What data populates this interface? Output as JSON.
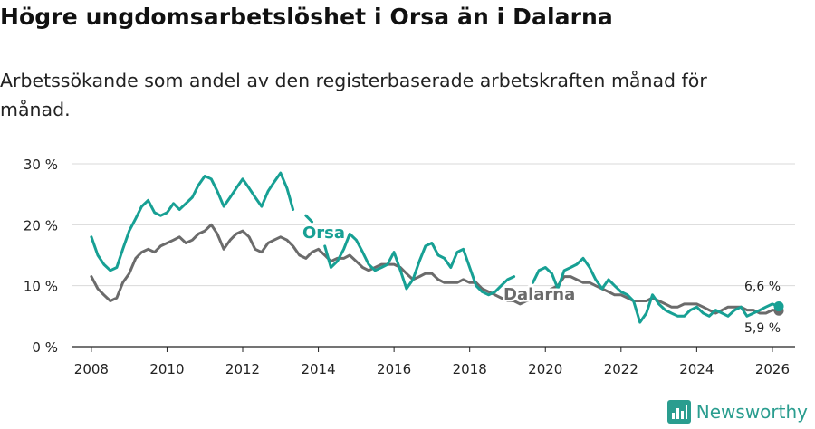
{
  "header": {
    "title": "Högre ungdomsarbetslöshet i Orsa än i Dalarna",
    "subtitle": "Arbetssökande som andel av den registerbaserade arbetskraften månad för månad."
  },
  "brand": {
    "name": "Newsworthy",
    "icon": "newsworthy-logo-icon",
    "color": "#2a9d8f"
  },
  "chart_data": {
    "type": "line",
    "title": "Högre ungdomsarbetslöshet i Orsa än i Dalarna",
    "xlabel": "",
    "ylabel": "",
    "xlim": [
      2007.5,
      2026.6
    ],
    "ylim": [
      0,
      30
    ],
    "grid": true,
    "x_ticks": [
      2008,
      2010,
      2012,
      2014,
      2016,
      2018,
      2020,
      2022,
      2024,
      2026
    ],
    "x_tick_labels": [
      "2008",
      "2010",
      "2012",
      "2014",
      "2016",
      "2018",
      "2020",
      "2022",
      "2024",
      "2026"
    ],
    "y_ticks": [
      0,
      10,
      20,
      30
    ],
    "y_tick_labels": [
      "0 %",
      "10 %",
      "20 %",
      "30 %"
    ],
    "series": [
      {
        "name": "Dalarna",
        "label": "Dalarna",
        "color": "#6b6b6b",
        "end_label": "5,9 %",
        "x": [
          2008.0,
          2008.17,
          2008.33,
          2008.5,
          2008.67,
          2008.83,
          2009.0,
          2009.17,
          2009.33,
          2009.5,
          2009.67,
          2009.83,
          2010.0,
          2010.17,
          2010.33,
          2010.5,
          2010.67,
          2010.83,
          2011.0,
          2011.17,
          2011.33,
          2011.5,
          2011.67,
          2011.83,
          2012.0,
          2012.17,
          2012.33,
          2012.5,
          2012.67,
          2012.83,
          2013.0,
          2013.17,
          2013.33,
          2013.5,
          2013.67,
          2013.83,
          2014.0,
          2014.17,
          2014.33,
          2014.5,
          2014.67,
          2014.83,
          2015.0,
          2015.17,
          2015.33,
          2015.5,
          2015.67,
          2015.83,
          2016.0,
          2016.17,
          2016.33,
          2016.5,
          2016.67,
          2016.83,
          2017.0,
          2017.17,
          2017.33,
          2017.5,
          2017.67,
          2017.83,
          2018.0,
          2018.17,
          2018.33,
          2018.5,
          2018.67,
          2018.83,
          2019.0,
          2019.17,
          2019.33,
          2019.5,
          2019.67,
          2019.83,
          2020.0,
          2020.17,
          2020.33,
          2020.5,
          2020.67,
          2020.83,
          2021.0,
          2021.17,
          2021.33,
          2021.5,
          2021.67,
          2021.83,
          2022.0,
          2022.17,
          2022.33,
          2022.5,
          2022.67,
          2022.83,
          2023.0,
          2023.17,
          2023.33,
          2023.5,
          2023.67,
          2023.83,
          2024.0,
          2024.17,
          2024.33,
          2024.5,
          2024.67,
          2024.83,
          2025.0,
          2025.17,
          2025.33,
          2025.5,
          2025.67,
          2025.83,
          2026.0,
          2026.17
        ],
        "values": [
          11.5,
          9.5,
          8.5,
          7.5,
          8.0,
          10.5,
          12.0,
          14.5,
          15.5,
          16.0,
          15.5,
          16.5,
          17.0,
          17.5,
          18.0,
          17.0,
          17.5,
          18.5,
          19.0,
          20.0,
          18.5,
          16.0,
          17.5,
          18.5,
          19.0,
          18.0,
          16.0,
          15.5,
          17.0,
          17.5,
          18.0,
          17.5,
          16.5,
          15.0,
          14.5,
          15.5,
          16.0,
          15.0,
          14.0,
          14.5,
          14.5,
          15.0,
          14.0,
          13.0,
          12.5,
          13.0,
          13.5,
          13.5,
          13.5,
          13.0,
          12.0,
          11.0,
          11.5,
          12.0,
          12.0,
          11.0,
          10.5,
          10.5,
          10.5,
          11.0,
          10.5,
          10.5,
          9.5,
          9.0,
          8.5,
          8.0,
          7.5,
          7.5,
          7.0,
          7.5,
          8.0,
          8.5,
          9.0,
          9.5,
          10.0,
          11.5,
          11.5,
          11.0,
          10.5,
          10.5,
          10.0,
          9.5,
          9.0,
          8.5,
          8.5,
          8.0,
          7.5,
          7.5,
          7.5,
          8.0,
          7.5,
          7.0,
          6.5,
          6.5,
          7.0,
          7.0,
          7.0,
          6.5,
          6.0,
          5.5,
          6.0,
          6.5,
          6.5,
          6.5,
          6.0,
          6.0,
          5.5,
          5.5,
          6.0,
          5.9
        ]
      },
      {
        "name": "Orsa",
        "label": "Orsa",
        "color": "#17a094",
        "end_label": "6,6 %",
        "x": [
          2008.0,
          2008.17,
          2008.33,
          2008.5,
          2008.67,
          2008.83,
          2009.0,
          2009.17,
          2009.33,
          2009.5,
          2009.67,
          2009.83,
          2010.0,
          2010.17,
          2010.33,
          2010.5,
          2010.67,
          2010.83,
          2011.0,
          2011.17,
          2011.33,
          2011.5,
          2011.67,
          2011.83,
          2012.0,
          2012.17,
          2012.33,
          2012.5,
          2012.67,
          2012.83,
          2013.0,
          2013.17,
          2013.33,
          2013.5,
          2013.67,
          2013.83,
          2014.0,
          2014.17,
          2014.33,
          2014.5,
          2014.67,
          2014.83,
          2015.0,
          2015.17,
          2015.33,
          2015.5,
          2015.67,
          2015.83,
          2016.0,
          2016.17,
          2016.33,
          2016.5,
          2016.67,
          2016.83,
          2017.0,
          2017.17,
          2017.33,
          2017.5,
          2017.67,
          2017.83,
          2018.0,
          2018.17,
          2018.33,
          2018.5,
          2018.67,
          2018.83,
          2019.0,
          2019.17,
          2019.33,
          2019.5,
          2019.67,
          2019.83,
          2020.0,
          2020.17,
          2020.33,
          2020.5,
          2020.67,
          2020.83,
          2021.0,
          2021.17,
          2021.33,
          2021.5,
          2021.67,
          2021.83,
          2022.0,
          2022.17,
          2022.33,
          2022.5,
          2022.67,
          2022.83,
          2023.0,
          2023.17,
          2023.33,
          2023.5,
          2023.67,
          2023.83,
          2024.0,
          2024.17,
          2024.33,
          2024.5,
          2024.67,
          2024.83,
          2025.0,
          2025.17,
          2025.33,
          2025.5,
          2025.67,
          2025.83,
          2026.0,
          2026.17
        ],
        "values": [
          18.0,
          15.0,
          13.5,
          12.5,
          13.0,
          16.0,
          19.0,
          21.0,
          23.0,
          24.0,
          22.0,
          21.5,
          22.0,
          23.5,
          22.5,
          23.5,
          24.5,
          26.5,
          28.0,
          27.5,
          25.5,
          23.0,
          24.5,
          26.0,
          27.5,
          26.0,
          24.5,
          23.0,
          25.5,
          27.0,
          28.5,
          26.0,
          22.5,
          null,
          21.5,
          20.5,
          null,
          16.5,
          13.0,
          14.0,
          16.0,
          18.5,
          17.5,
          15.5,
          13.5,
          12.5,
          13.0,
          13.5,
          15.5,
          12.5,
          9.5,
          11.0,
          14.0,
          16.5,
          17.0,
          15.0,
          14.5,
          13.0,
          15.5,
          16.0,
          13.0,
          10.0,
          9.0,
          8.5,
          9.0,
          10.0,
          11.0,
          11.5,
          null,
          null,
          10.5,
          12.5,
          13.0,
          12.0,
          9.5,
          12.5,
          13.0,
          13.5,
          14.5,
          13.0,
          11.0,
          9.5,
          11.0,
          10.0,
          9.0,
          8.5,
          7.5,
          4.0,
          5.5,
          8.5,
          7.0,
          6.0,
          5.5,
          5.0,
          5.0,
          6.0,
          6.5,
          5.5,
          5.0,
          6.0,
          5.5,
          5.0,
          6.0,
          6.5,
          5.0,
          5.5,
          6.0,
          6.5,
          7.0,
          6.6
        ]
      }
    ]
  }
}
